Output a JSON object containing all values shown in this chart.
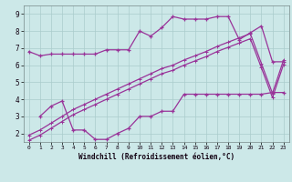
{
  "xlabel": "Windchill (Refroidissement éolien,°C)",
  "bg_color": "#cce8e8",
  "line_color": "#993399",
  "grid_color": "#aacccc",
  "xlim": [
    -0.5,
    23.5
  ],
  "ylim": [
    1.5,
    9.5
  ],
  "xticks": [
    0,
    1,
    2,
    3,
    4,
    5,
    6,
    7,
    8,
    9,
    10,
    11,
    12,
    13,
    14,
    15,
    16,
    17,
    18,
    19,
    20,
    21,
    22,
    23
  ],
  "yticks": [
    2,
    3,
    4,
    5,
    6,
    7,
    8,
    9
  ],
  "line1_x": [
    0,
    1,
    2,
    3,
    4,
    5,
    6,
    7,
    8,
    9,
    10,
    11,
    12,
    13,
    14,
    15,
    16,
    17,
    18,
    19,
    20,
    21,
    22,
    23
  ],
  "line1_y": [
    6.8,
    6.55,
    6.65,
    6.65,
    6.65,
    6.65,
    6.65,
    6.9,
    6.9,
    6.9,
    8.0,
    7.7,
    8.2,
    8.85,
    8.7,
    8.7,
    8.7,
    8.85,
    8.85,
    7.5,
    7.9,
    8.3,
    6.2,
    6.2
  ],
  "line2_x": [
    1,
    2,
    3,
    4,
    5,
    6,
    7,
    8,
    9,
    10,
    11,
    12,
    13,
    14,
    15,
    16,
    17,
    18,
    19,
    20,
    21,
    22,
    23
  ],
  "line2_y": [
    3.0,
    3.6,
    3.9,
    2.2,
    2.2,
    1.65,
    1.65,
    2.0,
    2.3,
    3.0,
    3.0,
    3.3,
    3.3,
    4.3,
    4.3,
    4.3,
    4.3,
    4.3,
    4.3,
    4.3,
    4.3,
    4.4,
    4.4
  ],
  "line3_x": [
    0,
    1,
    2,
    3,
    4,
    5,
    6,
    7,
    8,
    9,
    10,
    11,
    12,
    13,
    14,
    15,
    16,
    17,
    18,
    19,
    20,
    21,
    22,
    23
  ],
  "line3_y": [
    1.9,
    2.2,
    2.6,
    3.0,
    3.4,
    3.7,
    4.0,
    4.3,
    4.6,
    4.9,
    5.2,
    5.5,
    5.8,
    6.0,
    6.3,
    6.55,
    6.8,
    7.1,
    7.35,
    7.6,
    7.85,
    6.1,
    4.35,
    6.3
  ],
  "line4_x": [
    0,
    1,
    2,
    3,
    4,
    5,
    6,
    7,
    8,
    9,
    10,
    11,
    12,
    13,
    14,
    15,
    16,
    17,
    18,
    19,
    20,
    21,
    22,
    23
  ],
  "line4_y": [
    1.6,
    1.9,
    2.3,
    2.7,
    3.1,
    3.4,
    3.7,
    4.0,
    4.3,
    4.6,
    4.9,
    5.2,
    5.5,
    5.7,
    6.0,
    6.25,
    6.5,
    6.8,
    7.05,
    7.3,
    7.55,
    5.85,
    4.1,
    6.05
  ]
}
